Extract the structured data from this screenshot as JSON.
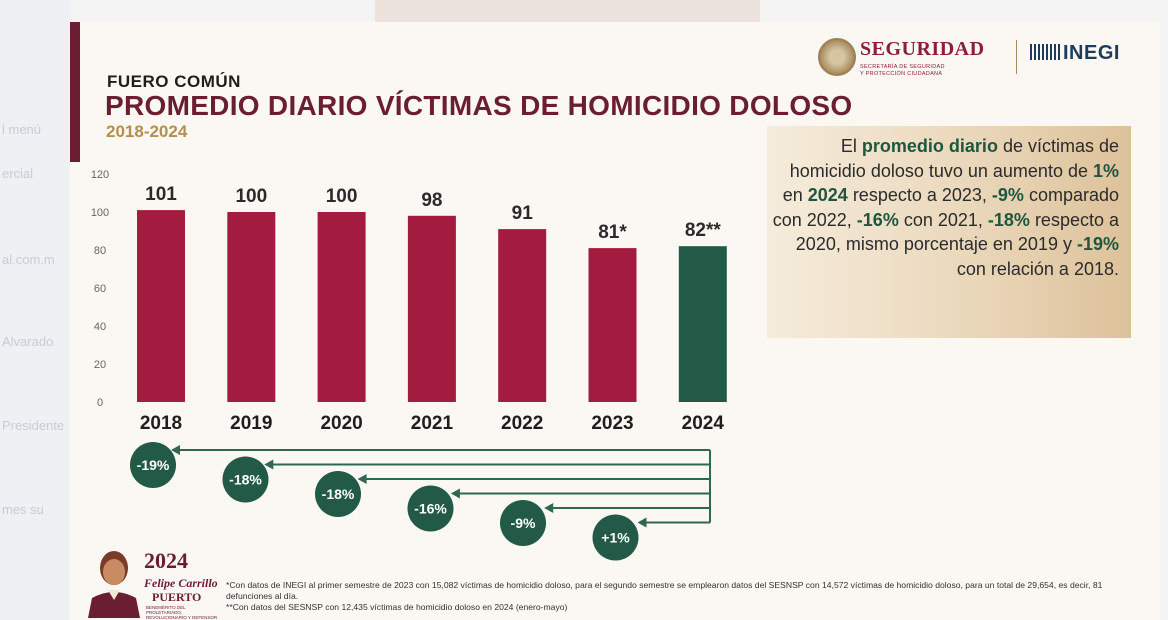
{
  "background": {
    "left_ghost_text": [
      "l menú",
      "ercial",
      "al.com.m",
      "Alvarado",
      "Presidente",
      "mes su"
    ]
  },
  "slide": {
    "kicker": "FUERO COMÚN",
    "title": "PROMEDIO DIARIO VÍCTIMAS DE HOMICIDIO DOLOSO",
    "period": "2018-2024",
    "logos": {
      "seguridad": "SEGURIDAD",
      "seguridad_sub1": "SECRETARÍA DE SEGURIDAD",
      "seguridad_sub2": "Y PROTECCIÓN CIUDADANA",
      "inegi": "INEGI"
    },
    "summary_text": {
      "p1": "El ",
      "h1": "promedio diario",
      "p2": " de víctimas de homicidio doloso tuvo un aumento de ",
      "h2": "1%",
      "p3": " en ",
      "h3": "2024",
      "p4": " respecto a 2023, ",
      "h4": "-9%",
      "p5": " comparado con 2022, ",
      "h5": "-16%",
      "p6": " con 2021, ",
      "h6": "-18%",
      "p7": " respecto a 2020, mismo porcentaje en 2019 y ",
      "h7": "-19%",
      "p8": " con relación a 2018."
    },
    "footer_logo": {
      "year": "2024",
      "line1": "Felipe Carrillo",
      "line2": "PUERTO",
      "line3": "BENEMÉRITO DEL PROLETARIADO, REVOLUCIONARIO Y DEFENSOR DEL MAYAB"
    },
    "notes": [
      "*Con datos de INEGI al primer semestre de 2023 con 15,082 víctimas de homicidio doloso, para el segundo semestre se emplearon datos del SESNSP con 14,572 víctimas de homicidio doloso, para un total de 29,654, es decir, 81 defunciones al día.",
      "**Con datos del SESNSP con 12,435  víctimas de homicidio doloso en 2024 (enero-mayo)"
    ]
  },
  "chart_data": {
    "type": "bar",
    "categories": [
      "2018",
      "2019",
      "2020",
      "2021",
      "2022",
      "2023",
      "2024"
    ],
    "values": [
      101,
      100,
      100,
      98,
      91,
      81,
      82
    ],
    "value_labels": [
      "101",
      "100",
      "100",
      "98",
      "91",
      "81*",
      "82**"
    ],
    "ylim": [
      0,
      120
    ],
    "yticks": [
      0,
      20,
      40,
      60,
      80,
      100,
      120
    ],
    "grid": false,
    "colors": {
      "default": "#a31c3f",
      "highlight": "#225a47",
      "highlight_category": "2024"
    },
    "comparisons": [
      {
        "from": "2024",
        "to": "2018",
        "label": "-19%"
      },
      {
        "from": "2024",
        "to": "2019",
        "label": "-18%"
      },
      {
        "from": "2024",
        "to": "2020",
        "label": "-18%"
      },
      {
        "from": "2024",
        "to": "2021",
        "label": "-16%"
      },
      {
        "from": "2024",
        "to": "2022",
        "label": "-9%"
      },
      {
        "from": "2024",
        "to": "2023",
        "label": "+1%"
      }
    ]
  }
}
